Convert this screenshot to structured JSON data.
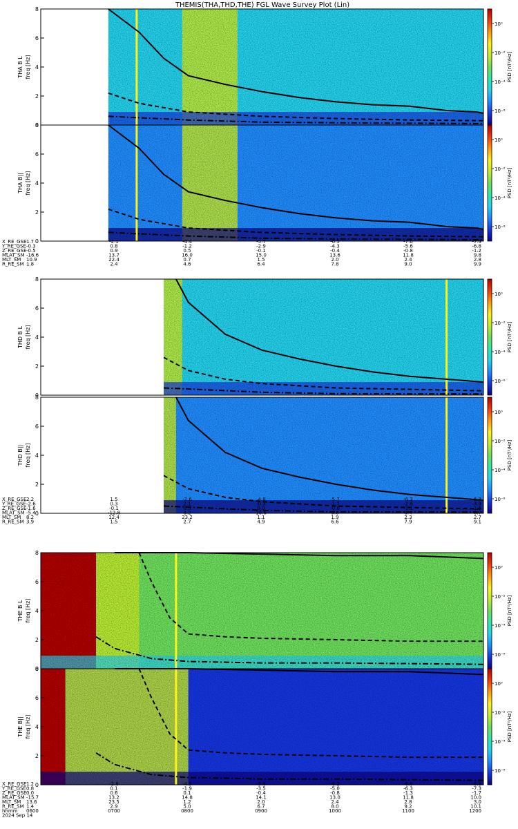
{
  "title": "THEMIS(THA,THD,THE) FGL Wave Survey Plot (Lin)",
  "colors": {
    "colormap": [
      "#0b0080",
      "#1535e0",
      "#1f8cff",
      "#23d3ee",
      "#2fe8a8",
      "#6ee05c",
      "#c6ec2c",
      "#fff21b",
      "#ff9a0f",
      "#f03a0a",
      "#b00000"
    ],
    "trace": "#000000",
    "frame": "#000000"
  },
  "chart_data": [
    {
      "type": "heatmap",
      "probe": "THA",
      "component": "B_L",
      "ylabel": "THA B L",
      "yunit": "freq [Hz]",
      "ylim": [
        0,
        8
      ],
      "yticks": [
        "0",
        "2",
        "4",
        "6",
        "8"
      ],
      "colorbar_label": "PSD [nT²/Hz]",
      "colorbar_ticks": [
        "10⁰",
        "10⁻²",
        "10⁻⁴",
        "10⁻⁶"
      ],
      "colorbar_log_range": [
        -7,
        1
      ],
      "time_range": [
        "0600",
        "1200"
      ],
      "data_start": "0655",
      "spike_time": "0718",
      "bright_band": [
        "0755",
        "0840"
      ],
      "background_level": 3,
      "fce_line": [
        [
          "0655",
          8
        ],
        [
          "0720",
          6.4
        ],
        [
          "0740",
          4.6
        ],
        [
          "0800",
          3.4
        ],
        [
          "0830",
          2.8
        ],
        [
          "0900",
          2.3
        ],
        [
          "0930",
          1.9
        ],
        [
          "1000",
          1.6
        ],
        [
          "1030",
          1.4
        ],
        [
          "1100",
          1.3
        ],
        [
          "1130",
          1.0
        ],
        [
          "1155",
          0.9
        ],
        [
          "1200",
          0.8
        ]
      ],
      "half_fce_line": [
        [
          "0655",
          2.2
        ],
        [
          "0720",
          1.5
        ],
        [
          "0800",
          0.9
        ],
        [
          "0900",
          0.6
        ],
        [
          "1000",
          0.45
        ],
        [
          "1100",
          0.35
        ],
        [
          "1200",
          0.3
        ]
      ],
      "tenth_fce_line": [
        [
          "0655",
          0.6
        ],
        [
          "0800",
          0.35
        ],
        [
          "0900",
          0.2
        ],
        [
          "1000",
          0.15
        ],
        [
          "1200",
          0.1
        ]
      ]
    },
    {
      "type": "heatmap",
      "probe": "THA",
      "component": "B_par",
      "ylabel": "THA B||",
      "yunit": "freq [Hz]",
      "ylim": [
        0,
        8
      ],
      "yticks": [
        "0",
        "2",
        "4",
        "6",
        "8"
      ],
      "colorbar_label": "PSD [nT²/Hz]",
      "colorbar_ticks": [
        "10⁰",
        "10⁻²",
        "10⁻⁴",
        "10⁻⁶"
      ],
      "colorbar_log_range": [
        -7,
        1
      ],
      "time_range": [
        "0600",
        "1200"
      ],
      "data_start": "0655",
      "spike_time": "0718",
      "bright_band": [
        "0755",
        "0840"
      ],
      "background_level": 2,
      "fce_line": [
        [
          "0655",
          8
        ],
        [
          "0720",
          6.4
        ],
        [
          "0740",
          4.6
        ],
        [
          "0800",
          3.4
        ],
        [
          "0830",
          2.8
        ],
        [
          "0900",
          2.3
        ],
        [
          "0930",
          1.9
        ],
        [
          "1000",
          1.6
        ],
        [
          "1030",
          1.4
        ],
        [
          "1100",
          1.3
        ],
        [
          "1130",
          1.0
        ],
        [
          "1155",
          0.9
        ],
        [
          "1200",
          0.8
        ]
      ],
      "half_fce_line": [
        [
          "0655",
          2.2
        ],
        [
          "0720",
          1.5
        ],
        [
          "0800",
          0.9
        ],
        [
          "0900",
          0.6
        ],
        [
          "1000",
          0.45
        ],
        [
          "1100",
          0.35
        ],
        [
          "1200",
          0.3
        ]
      ],
      "tenth_fce_line": [
        [
          "0655",
          0.6
        ],
        [
          "0800",
          0.35
        ],
        [
          "0900",
          0.2
        ],
        [
          "1000",
          0.15
        ],
        [
          "1200",
          0.1
        ]
      ]
    },
    {
      "type": "heatmap",
      "probe": "THD",
      "component": "B_L",
      "ylabel": "THD B L",
      "yunit": "freq [Hz]",
      "ylim": [
        0,
        8
      ],
      "yticks": [
        "0",
        "2",
        "4",
        "6",
        "8"
      ],
      "colorbar_label": "PSD [nT²/Hz]",
      "colorbar_ticks": [
        "10⁰",
        "10⁻²",
        "10⁻⁴",
        "10⁻⁶"
      ],
      "colorbar_log_range": [
        -7,
        1
      ],
      "time_range": [
        "0600",
        "1200"
      ],
      "data_start": "0740",
      "spike_time": "1130",
      "bright_band": [
        "0740",
        "0755"
      ],
      "background_level": 3,
      "fce_line": [
        [
          "0750",
          8
        ],
        [
          "0800",
          6.4
        ],
        [
          "0830",
          4.2
        ],
        [
          "0900",
          3.1
        ],
        [
          "0930",
          2.5
        ],
        [
          "1000",
          2.0
        ],
        [
          "1030",
          1.6
        ],
        [
          "1100",
          1.3
        ],
        [
          "1130",
          1.1
        ],
        [
          "1200",
          0.9
        ]
      ],
      "half_fce_line": [
        [
          "0740",
          2.6
        ],
        [
          "0800",
          1.7
        ],
        [
          "0830",
          1.1
        ],
        [
          "0900",
          0.8
        ],
        [
          "1000",
          0.5
        ],
        [
          "1100",
          0.4
        ],
        [
          "1200",
          0.3
        ]
      ],
      "tenth_fce_line": [
        [
          "0740",
          0.5
        ],
        [
          "0900",
          0.2
        ],
        [
          "1000",
          0.1
        ],
        [
          "1200",
          0.08
        ]
      ]
    },
    {
      "type": "heatmap",
      "probe": "THD",
      "component": "B_par",
      "ylabel": "THD B||",
      "yunit": "freq [Hz]",
      "ylim": [
        0,
        8
      ],
      "yticks": [
        "0",
        "2",
        "4",
        "6",
        "8"
      ],
      "colorbar_label": "PSD [nT²/Hz]",
      "colorbar_ticks": [
        "10⁰",
        "10⁻²",
        "10⁻⁴",
        "10⁻⁶"
      ],
      "colorbar_log_range": [
        -7,
        1
      ],
      "time_range": [
        "0600",
        "1200"
      ],
      "data_start": "0740",
      "spike_time": "1130",
      "bright_band": [
        "0740",
        "0750"
      ],
      "background_level": 2,
      "fce_line": [
        [
          "0750",
          8
        ],
        [
          "0800",
          6.4
        ],
        [
          "0830",
          4.2
        ],
        [
          "0900",
          3.1
        ],
        [
          "0930",
          2.5
        ],
        [
          "1000",
          2.0
        ],
        [
          "1030",
          1.6
        ],
        [
          "1100",
          1.3
        ],
        [
          "1130",
          1.1
        ],
        [
          "1200",
          0.9
        ]
      ],
      "half_fce_line": [
        [
          "0740",
          2.6
        ],
        [
          "0800",
          1.7
        ],
        [
          "0830",
          1.1
        ],
        [
          "0900",
          0.8
        ],
        [
          "1000",
          0.5
        ],
        [
          "1100",
          0.4
        ],
        [
          "1200",
          0.3
        ]
      ],
      "tenth_fce_line": [
        [
          "0740",
          0.5
        ],
        [
          "0900",
          0.2
        ],
        [
          "1000",
          0.1
        ],
        [
          "1200",
          0.08
        ]
      ]
    },
    {
      "type": "heatmap",
      "probe": "THE",
      "component": "B_L",
      "ylabel": "THE B L",
      "yunit": "freq [Hz]",
      "ylim": [
        0,
        8
      ],
      "yticks": [
        "0",
        "2",
        "4",
        "6",
        "8"
      ],
      "colorbar_label": "PSD [nT²/Hz]",
      "colorbar_ticks": [
        "10⁰",
        "10⁻²",
        "10⁻⁴",
        "10⁻⁶"
      ],
      "colorbar_log_range": [
        -7,
        1
      ],
      "time_range": [
        "0600",
        "1200"
      ],
      "data_start": "0600",
      "spike_time": "0750",
      "saturated_until": "0645",
      "bright_band": [
        "0645",
        "0720"
      ],
      "background_level": 5,
      "fce_line": [
        [
          "0700",
          8
        ],
        [
          "0800",
          8
        ],
        [
          "0900",
          7.9
        ],
        [
          "1000",
          7.8
        ],
        [
          "1100",
          7.8
        ],
        [
          "1200",
          7.6
        ]
      ],
      "half_fce_line": [
        [
          "0720",
          8
        ],
        [
          "0730",
          6.0
        ],
        [
          "0745",
          3.5
        ],
        [
          "0800",
          2.4
        ],
        [
          "0830",
          2.2
        ],
        [
          "0900",
          2.1
        ],
        [
          "1000",
          2.0
        ],
        [
          "1100",
          1.9
        ],
        [
          "1200",
          1.9
        ]
      ],
      "tenth_fce_line": [
        [
          "0645",
          2.2
        ],
        [
          "0700",
          1.4
        ],
        [
          "0730",
          0.7
        ],
        [
          "0800",
          0.5
        ],
        [
          "0900",
          0.4
        ],
        [
          "1000",
          0.4
        ],
        [
          "1100",
          0.35
        ],
        [
          "1200",
          0.3
        ]
      ]
    },
    {
      "type": "heatmap",
      "probe": "THE",
      "component": "B_par",
      "ylabel": "THE B||",
      "yunit": "freq [Hz]",
      "ylim": [
        0,
        8
      ],
      "yticks": [
        "0",
        "2",
        "4",
        "6",
        "8"
      ],
      "colorbar_label": "PSD [nT²/Hz]",
      "colorbar_ticks": [
        "10⁰",
        "10⁻²",
        "10⁻⁴",
        "10⁻⁶"
      ],
      "colorbar_log_range": [
        -7,
        1
      ],
      "time_range": [
        "0600",
        "1200"
      ],
      "data_start": "0600",
      "spike_time": "0750",
      "saturated_until": "0620",
      "bright_band": [
        "0620",
        "0800"
      ],
      "background_level": 1,
      "fce_line": [
        [
          "0700",
          8
        ],
        [
          "0800",
          8
        ],
        [
          "0900",
          7.9
        ],
        [
          "1000",
          7.8
        ],
        [
          "1100",
          7.8
        ],
        [
          "1200",
          7.6
        ]
      ],
      "half_fce_line": [
        [
          "0720",
          8
        ],
        [
          "0730",
          6.0
        ],
        [
          "0745",
          3.5
        ],
        [
          "0800",
          2.4
        ],
        [
          "0830",
          2.2
        ],
        [
          "0900",
          2.1
        ],
        [
          "1000",
          2.0
        ],
        [
          "1100",
          1.9
        ],
        [
          "1200",
          1.9
        ]
      ],
      "tenth_fce_line": [
        [
          "0645",
          2.2
        ],
        [
          "0700",
          1.4
        ],
        [
          "0730",
          0.7
        ],
        [
          "0800",
          0.5
        ],
        [
          "0900",
          0.4
        ],
        [
          "1000",
          0.4
        ],
        [
          "1100",
          0.35
        ],
        [
          "1200",
          0.3
        ]
      ]
    }
  ],
  "ephemeris_blocks": [
    {
      "probe": "THA",
      "rows": [
        {
          "label": "X_RE_GSE",
          "values": [
            "1.7",
            "-2.1",
            "-4.4",
            "-5.7",
            "-6.5",
            "-7.0",
            "-7.3"
          ]
        },
        {
          "label": "Y_RE_GSE",
          "values": [
            "-0.3",
            "0.8",
            "-1.2",
            "-2.9",
            "-4.3",
            "-5.6",
            "-6.8"
          ]
        },
        {
          "label": "Z_RE_GSE",
          "values": [
            "-0.5",
            "0.9",
            "0.5",
            "-0.1",
            "-0.4",
            "-0.8",
            "-1.2"
          ]
        },
        {
          "label": "MLAT_SM",
          "values": [
            "-16.6",
            "13.7",
            "16.0",
            "15.0",
            "13.6",
            "11.8",
            "9.8"
          ]
        },
        {
          "label": "MLT_SM",
          "values": [
            "10.9",
            "22.4",
            "0.7",
            "1.5",
            "2.0",
            "2.4",
            "2.8"
          ]
        },
        {
          "label": "R_RE_SM",
          "values": [
            "1.8",
            "2.4",
            "4.6",
            "6.4",
            "7.8",
            "9.0",
            "9.9"
          ]
        }
      ]
    },
    {
      "probe": "THD",
      "rows": [
        {
          "label": "X_RE_GSE",
          "values": [
            "2.2",
            "1.5",
            "-2.6",
            "-4.8",
            "-5.7",
            "-6.3",
            "-6.8"
          ]
        },
        {
          "label": "Y_RE_GSE",
          "values": [
            "-2.6",
            "0.3",
            "2.1",
            "-0.3",
            "-1.7",
            "-2.6",
            "-3.9"
          ]
        },
        {
          "label": "Z_RE_GSE",
          "values": [
            "-1.6",
            "-0.1",
            "0.5",
            "0.0",
            "-0.6",
            "-1.1",
            "-1.6"
          ]
        },
        {
          "label": "MLAT_SM",
          "values": [
            "-5.4",
            "-12.8",
            "8.2",
            "10.6",
            "9.6",
            "8.4",
            "6.7"
          ]
        },
        {
          "label": "MLT_SM",
          "values": [
            "8.2",
            "12.4",
            "23.2",
            "1.1",
            "1.9",
            "2.3",
            "2.7"
          ]
        },
        {
          "label": "R_RE_SM",
          "values": [
            "3.9",
            "1.5",
            "2.7",
            "4.9",
            "6.6",
            "7.9",
            "9.1"
          ]
        }
      ]
    },
    {
      "probe": "THE",
      "rows": [
        {
          "label": "X_RE_GSE",
          "values": [
            "1.2",
            "-2.8",
            "-4.5",
            "-5.6",
            "-6.2",
            "-6.6",
            "-6.8"
          ]
        },
        {
          "label": "Y_RE_GSE",
          "values": [
            "0.8",
            "0.1",
            "-1.9",
            "-3.5",
            "-5.0",
            "-6.3",
            "-7.3"
          ]
        },
        {
          "label": "Z_RE_GSE",
          "values": [
            "0.0",
            "0.6",
            "0.1",
            "-0.4",
            "-0.8",
            "-1.3",
            "-1.7"
          ]
        },
        {
          "label": "MLAT_SM",
          "values": [
            "-15.7",
            "13.2",
            "14.8",
            "14.1",
            "13.0",
            "11.8",
            "10.0"
          ]
        },
        {
          "label": "MLT_SM",
          "values": [
            "13.6",
            "23.5",
            "1.2",
            "2.0",
            "2.4",
            "2.8",
            "3.0"
          ]
        },
        {
          "label": "R_RE_SM",
          "values": [
            "1.4",
            "2.9",
            "5.0",
            "6.7",
            "8.0",
            "9.2",
            "10.1"
          ]
        }
      ],
      "time_row": {
        "label": "hhmm",
        "values": [
          "0600",
          "0700",
          "0800",
          "0900",
          "1000",
          "1100",
          "1200"
        ]
      },
      "date": "2024 Sep 14"
    }
  ]
}
